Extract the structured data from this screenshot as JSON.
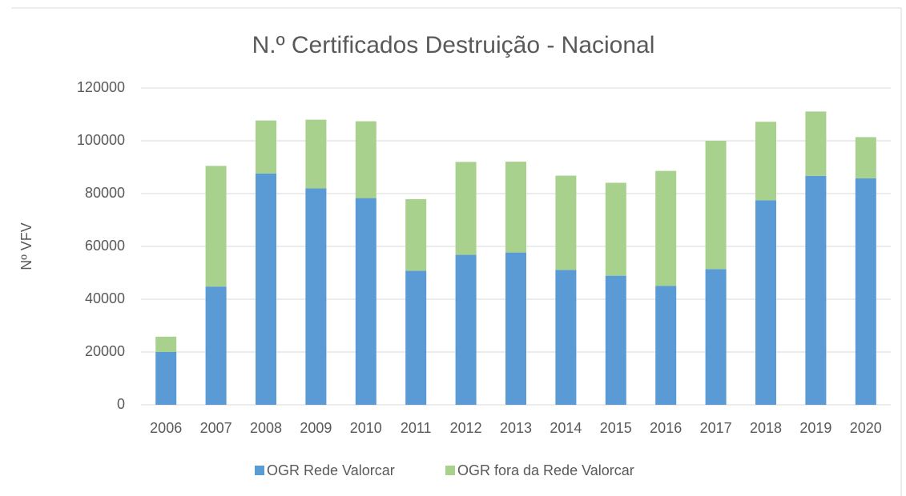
{
  "chart_data": {
    "type": "bar",
    "stacked": true,
    "title": "N.º Certificados Destruição - Nacional",
    "y_label": "Nº VFV",
    "categories": [
      "2006",
      "2007",
      "2008",
      "2009",
      "2010",
      "2011",
      "2012",
      "2013",
      "2014",
      "2015",
      "2016",
      "2017",
      "2018",
      "2019",
      "2020"
    ],
    "series": [
      {
        "name": "OGR Rede Valorcar",
        "color": "#5b9bd5",
        "values": [
          20000,
          44800,
          87600,
          82000,
          78300,
          50800,
          56800,
          57700,
          51100,
          48900,
          45000,
          51400,
          77500,
          86700,
          85800
        ]
      },
      {
        "name": "OGR fora da Rede Valorcar",
        "color": "#a9d18e",
        "values": [
          5800,
          45700,
          20100,
          26000,
          29100,
          27100,
          35200,
          34400,
          35700,
          35200,
          43600,
          48600,
          29700,
          24400,
          15600
        ]
      }
    ],
    "ylim": [
      0,
      120000
    ],
    "yticks": [
      0,
      20000,
      40000,
      60000,
      80000,
      100000,
      120000
    ],
    "grid": true,
    "legend": "bottom"
  }
}
